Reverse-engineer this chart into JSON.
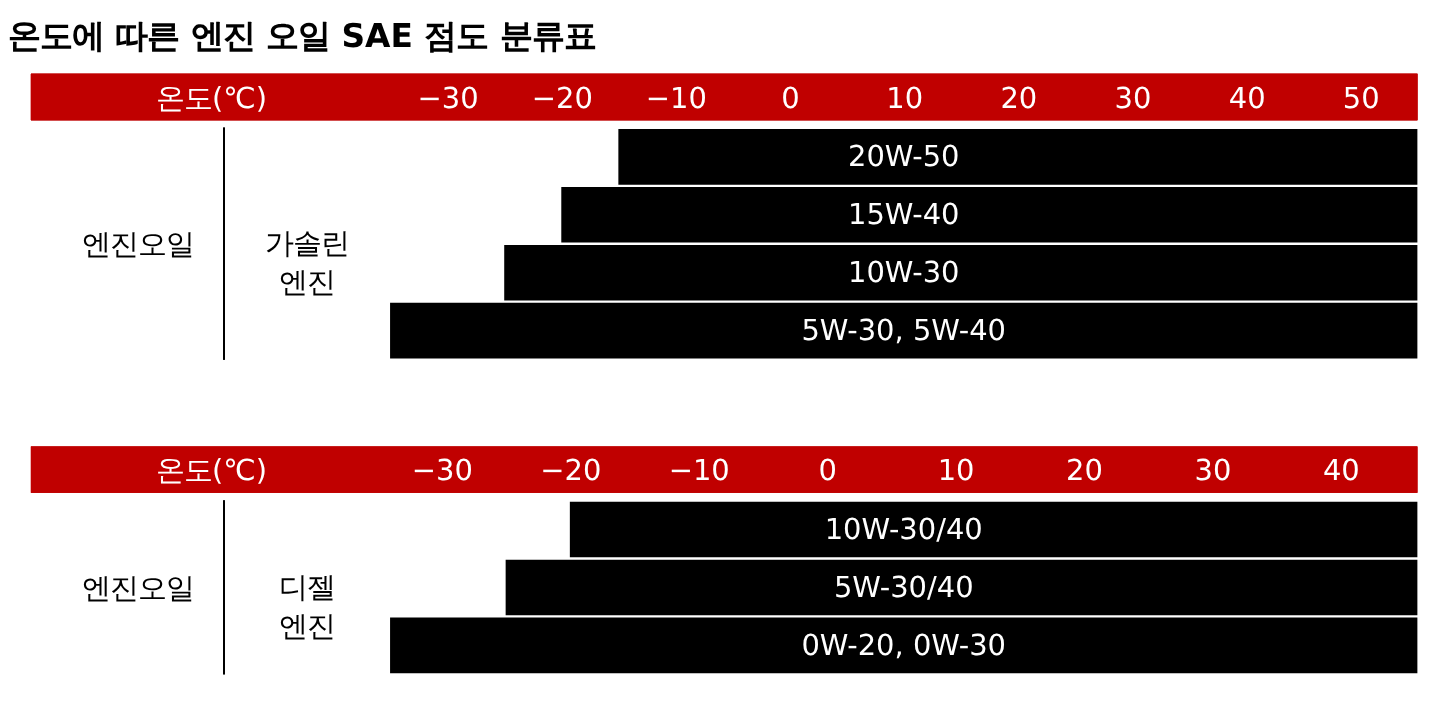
{
  "chart_data": [
    {
      "type": "bar",
      "orientation": "horizontal",
      "title": "온도에 따른 엔진 오일 SAE 점도 분류표",
      "xlabel": "온도(℃)",
      "ylabel": "엔진오일",
      "annotations": [
        "가솔린 엔진"
      ],
      "categories": [
        "20W-50",
        "15W-40",
        "10W-30",
        "5W-30, 5W-40"
      ],
      "base": [
        -15,
        -20,
        -25,
        -35
      ],
      "values": [
        70,
        75,
        80,
        90
      ],
      "color": "#000000",
      "xlim": [
        -35,
        55
      ],
      "xticks": [
        -30,
        -20,
        -10,
        0,
        10,
        20,
        30,
        40,
        50
      ],
      "grid": false
    },
    {
      "type": "bar",
      "orientation": "horizontal",
      "xlabel": "온도(℃)",
      "ylabel": "엔진오일",
      "annotations": [
        "디젤 엔진"
      ],
      "categories": [
        "10W-30/40",
        "5W-30/40",
        "0W-20, 0W-30"
      ],
      "base": [
        -20,
        -25,
        -34
      ],
      "values": [
        66,
        71,
        80
      ],
      "color": "#000000",
      "xlim": [
        -34,
        46
      ],
      "xticks": [
        -30,
        -20,
        -10,
        0,
        10,
        20,
        30,
        40
      ],
      "grid": false
    }
  ]
}
